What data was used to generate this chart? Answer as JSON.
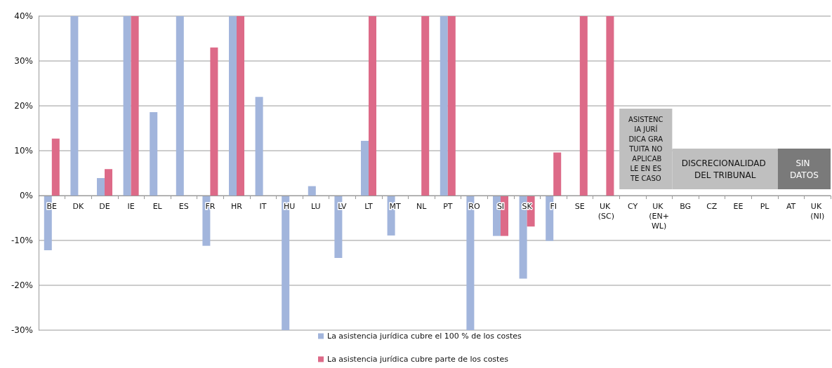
{
  "chart_data": {
    "type": "bar",
    "categories": [
      "BE",
      "DK",
      "DE",
      "IE",
      "EL",
      "ES",
      "FR",
      "HR",
      "IT",
      "HU",
      "LU",
      "LV",
      "LT",
      "MT",
      "NL",
      "PT",
      "RO",
      "SI",
      "SK",
      "FI",
      "SE",
      "UK (SC)",
      "CY",
      "UK (EN+WL)",
      "BG",
      "CZ",
      "EE",
      "PL",
      "AT",
      "UK (NI)"
    ],
    "series": [
      {
        "name": "La asistencia jurídica cubre el 100 % de los costes",
        "color": "#a2b5dc",
        "values": [
          -12.2,
          40,
          3.9,
          40,
          18.6,
          40,
          -11.2,
          40,
          22,
          -30,
          2.1,
          -13.9,
          12.2,
          -8.9,
          null,
          40,
          -30,
          -9,
          -18.5,
          -10.1,
          null,
          null,
          null,
          null,
          null,
          null,
          null,
          null,
          null,
          null
        ]
      },
      {
        "name": "La asistencia jurídica cubre parte de los costes",
        "color": "#dd6a88",
        "values": [
          12.7,
          null,
          5.9,
          40,
          null,
          null,
          33,
          40,
          null,
          null,
          null,
          null,
          40,
          null,
          40,
          40,
          null,
          -9,
          -6.9,
          9.6,
          40,
          40,
          null,
          null,
          null,
          null,
          null,
          null,
          null,
          null
        ]
      }
    ],
    "ylim": [
      -30,
      40
    ],
    "yticks": [
      {
        "value": -30,
        "label": "-30%"
      },
      {
        "value": -20,
        "label": "-20%"
      },
      {
        "value": -10,
        "label": "-10%"
      },
      {
        "value": 0,
        "label": "0%"
      },
      {
        "value": 10,
        "label": "10%"
      },
      {
        "value": 20,
        "label": "20%"
      },
      {
        "value": 30,
        "label": "30%"
      },
      {
        "value": 40,
        "label": "40%"
      }
    ],
    "grid": "y",
    "legend": "bottom",
    "bands": [
      {
        "axis": "x",
        "from": "CY",
        "to": "UK (EN+WL)",
        "label": "ASISTENCIA JURÍDICA GRATUITA NO APLICABLE EN ESTE CASO",
        "color": "#bfbfbf"
      },
      {
        "axis": "x",
        "from": "BG",
        "to": "PL",
        "label": "DISCRECIONALIDAD DEL TRIBUNAL",
        "color": "#bfbfbf"
      },
      {
        "axis": "x",
        "from": "AT",
        "to": "UK (NI)",
        "label": "SIN DATOS",
        "color": "#7a7a7a"
      }
    ]
  }
}
